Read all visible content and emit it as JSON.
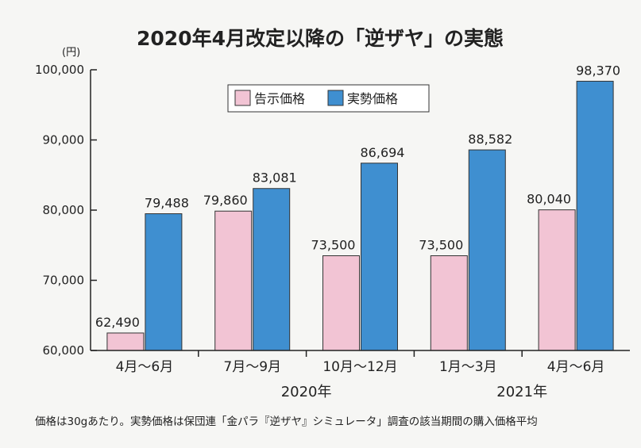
{
  "chart_data": {
    "type": "bar",
    "title": "2020年4月改定以降の「逆ザヤ」の実態",
    "y_unit": "(円)",
    "ylim": [
      60000,
      100000
    ],
    "yticks": [
      60000,
      70000,
      80000,
      90000,
      100000
    ],
    "ytick_labels": [
      "60,000",
      "70,000",
      "80,000",
      "90,000",
      "100,000"
    ],
    "categories": [
      "4月～6月",
      "7月～9月",
      "10月～12月",
      "1月～3月",
      "4月～6月"
    ],
    "year_groups": [
      {
        "label": "2020年",
        "categories": [
          1,
          2
        ]
      },
      {
        "label": "2021年",
        "categories": [
          3,
          4
        ]
      }
    ],
    "series": [
      {
        "name": "告示価格",
        "color": "#f2c4d4",
        "values": [
          62490,
          79860,
          73500,
          73500,
          80040
        ],
        "labels": [
          "62,490",
          "79,860",
          "73,500",
          "73,500",
          "80,040"
        ]
      },
      {
        "name": "実勢価格",
        "color": "#3f8fd0",
        "values": [
          79488,
          83081,
          86694,
          88582,
          98370
        ],
        "labels": [
          "79,488",
          "83,081",
          "86,694",
          "88,582",
          "98,370"
        ]
      }
    ],
    "legend_position": "top-center",
    "grid": false,
    "note": "価格は30gあたり。実勢価格は保団連「金パラ『逆ザヤ』シミュレータ」調査の該当期間の購入価格平均"
  }
}
